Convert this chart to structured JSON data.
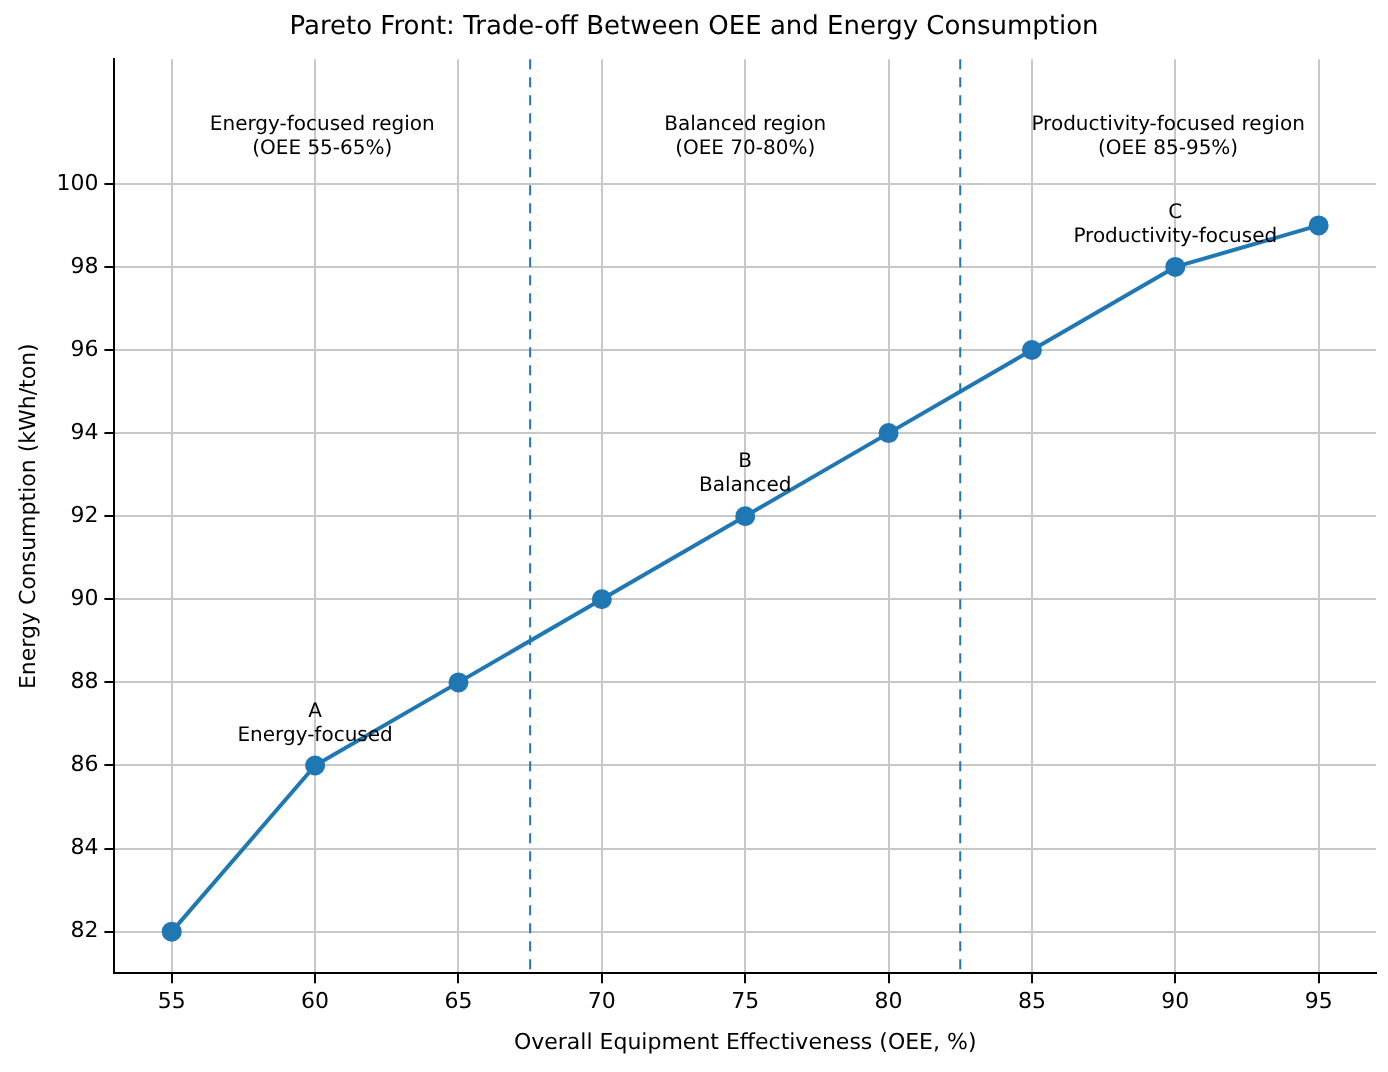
{
  "chart_data": {
    "type": "line",
    "title": "Pareto Front: Trade-off Between OEE and Energy Consumption",
    "xlabel": "Overall Equipment Effectiveness (OEE, %)",
    "ylabel": "Energy Consumption (kWh/ton)",
    "x": [
      55,
      60,
      65,
      70,
      75,
      80,
      85,
      90,
      95
    ],
    "series": [
      {
        "color": "#1f77b4",
        "values": [
          82,
          86,
          88,
          90,
          92,
          94,
          96,
          98,
          99
        ]
      }
    ],
    "xlim": [
      53,
      97
    ],
    "ylim": [
      81,
      103
    ],
    "xticks": [
      55,
      60,
      65,
      70,
      75,
      80,
      85,
      90,
      95
    ],
    "yticks": [
      82,
      84,
      86,
      88,
      90,
      92,
      94,
      96,
      98,
      100
    ],
    "grid": true,
    "marker": "circle",
    "line_style": "solid",
    "legend": false,
    "ref_lines": [
      {
        "axis": "x",
        "value": 67.5,
        "color": "#1f77b4",
        "line_style": "dashed"
      },
      {
        "axis": "x",
        "value": 82.5,
        "color": "#1f77b4",
        "line_style": "dashed"
      }
    ],
    "annotations": [
      "Energy-focused region\n(OEE 55-65%)",
      "Balanced region\n(OEE 70-80%)",
      "Productivity-focused region\n(OEE 85-95%)",
      {
        "text": "A\nEnergy-focused",
        "x": 60,
        "y": 86
      },
      {
        "text": "B\nBalanced",
        "x": 75,
        "y": 92
      },
      {
        "text": "C\nProductivity-focused",
        "x": 90,
        "y": 98
      }
    ]
  }
}
